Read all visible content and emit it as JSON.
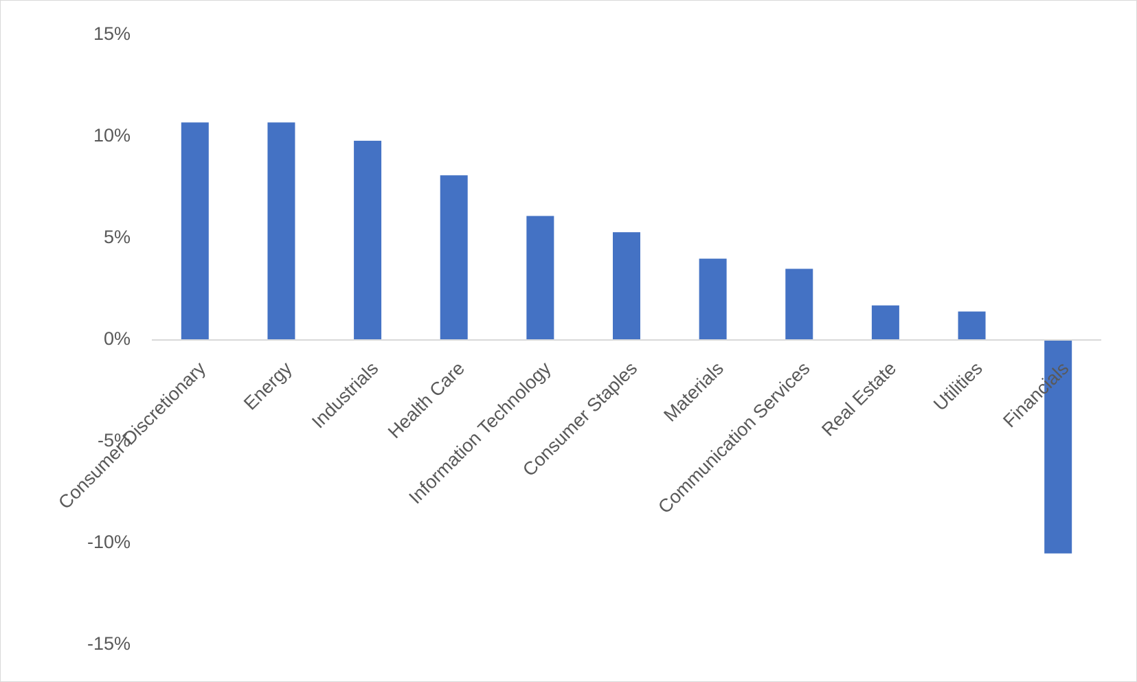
{
  "chart_data": {
    "type": "bar",
    "categories": [
      "Consumer Discretionary",
      "Energy",
      "Industrials",
      "Health Care",
      "Information Technology",
      "Consumer Staples",
      "Materials",
      "Communication Services",
      "Real Estate",
      "Utilities",
      "Financials"
    ],
    "values": [
      10.7,
      10.7,
      9.8,
      8.1,
      6.1,
      5.3,
      4.0,
      3.5,
      1.7,
      1.4,
      -10.5
    ],
    "color": "#4472c4",
    "ylim": [
      -15,
      15
    ],
    "yticks": [
      {
        "value": -15,
        "label": "-15%"
      },
      {
        "value": -10,
        "label": "-10%"
      },
      {
        "value": -5,
        "label": "-5%"
      },
      {
        "value": 0,
        "label": "0%"
      },
      {
        "value": 5,
        "label": "5%"
      },
      {
        "value": 10,
        "label": "10%"
      },
      {
        "value": 15,
        "label": "15%"
      }
    ],
    "grid": false
  }
}
